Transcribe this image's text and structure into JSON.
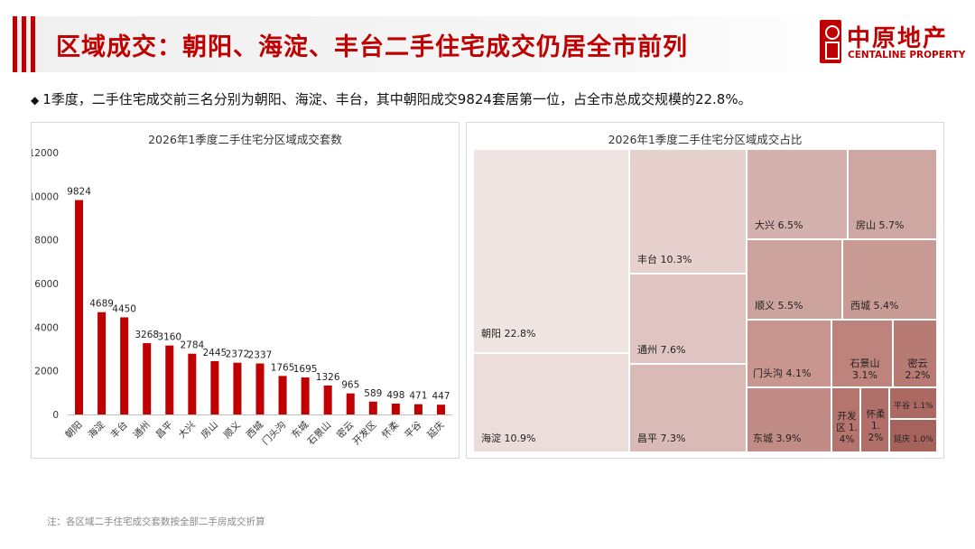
{
  "header": {
    "title": "区域成交：朝阳、海淀、丰台二手住宅成交仍居全市前列",
    "logo_cn": "中原地产",
    "logo_en": "CENTALINE PROPERTY"
  },
  "bullet": {
    "symbol": "◆",
    "text": "1季度，二手住宅成交前三名分别为朝阳、海淀、丰台，其中朝阳成交9824套居第一位，占全市总成交规模的22.8%。"
  },
  "colors": {
    "accent": "#c00000",
    "bar": "#c00000"
  },
  "chart_data": [
    {
      "type": "bar",
      "title": "2026年1季度二手住宅分区域成交套数",
      "xlabel": "",
      "ylabel": "",
      "ylim": [
        0,
        12000
      ],
      "yticks": [
        0,
        2000,
        4000,
        6000,
        8000,
        10000,
        12000
      ],
      "grid": false,
      "categories": [
        "朝阳",
        "海淀",
        "丰台",
        "通州",
        "昌平",
        "大兴",
        "房山",
        "顺义",
        "西城",
        "门头沟",
        "东城",
        "石景山",
        "密云",
        "开发区",
        "怀柔",
        "平谷",
        "延庆"
      ],
      "values": [
        9824,
        4689,
        4450,
        3268,
        3160,
        2784,
        2445,
        2372,
        2337,
        1765,
        1695,
        1326,
        965,
        589,
        498,
        471,
        447
      ]
    },
    {
      "type": "treemap",
      "title": "2026年1季度二手住宅分区域成交占比",
      "items": [
        {
          "name": "朝阳",
          "label": "朝阳 22.8%",
          "share": 22.8,
          "color": "#f0e4e2"
        },
        {
          "name": "海淀",
          "label": "海淀 10.9%",
          "share": 10.9,
          "color": "#ecdcda"
        },
        {
          "name": "丰台",
          "label": "丰台 10.3%",
          "share": 10.3,
          "color": "#e6d1cf"
        },
        {
          "name": "通州",
          "label": "通州 7.6%",
          "share": 7.6,
          "color": "#dfc4c1"
        },
        {
          "name": "昌平",
          "label": "昌平 7.3%",
          "share": 7.3,
          "color": "#d9bab6"
        },
        {
          "name": "大兴",
          "label": "大兴 6.5%",
          "share": 6.5,
          "color": "#d4b1ad"
        },
        {
          "name": "房山",
          "label": "房山 5.7%",
          "share": 5.7,
          "color": "#cfa7a2"
        },
        {
          "name": "顺义",
          "label": "顺义 5.5%",
          "share": 5.5,
          "color": "#cda39e"
        },
        {
          "name": "西城",
          "label": "西城 5.4%",
          "share": 5.4,
          "color": "#c99b95"
        },
        {
          "name": "门头沟",
          "label": "门头沟 4.1%",
          "share": 4.1,
          "color": "#c8958f"
        },
        {
          "name": "东城",
          "label": "东城 3.9%",
          "share": 3.9,
          "color": "#c28c86"
        },
        {
          "name": "石景山",
          "label": "石景山 3.1%",
          "share": 3.1,
          "color": "#bd837c"
        },
        {
          "name": "密云",
          "label": "密云 2.2%",
          "share": 2.2,
          "color": "#b77b74"
        },
        {
          "name": "开发区",
          "label": "开发区 1.4%",
          "share": 1.4,
          "color": "#b4756e"
        },
        {
          "name": "怀柔",
          "label": "怀柔 1.2%",
          "share": 1.2,
          "color": "#b06f68"
        },
        {
          "name": "平谷",
          "label": "平谷 1.1%",
          "share": 1.1,
          "color": "#ab6962"
        },
        {
          "name": "延庆",
          "label": "延庆 1.0%",
          "share": 1.0,
          "color": "#a5635c"
        }
      ]
    }
  ],
  "note": "注：各区域二手住宅成交套数按全部二手房成交折算"
}
